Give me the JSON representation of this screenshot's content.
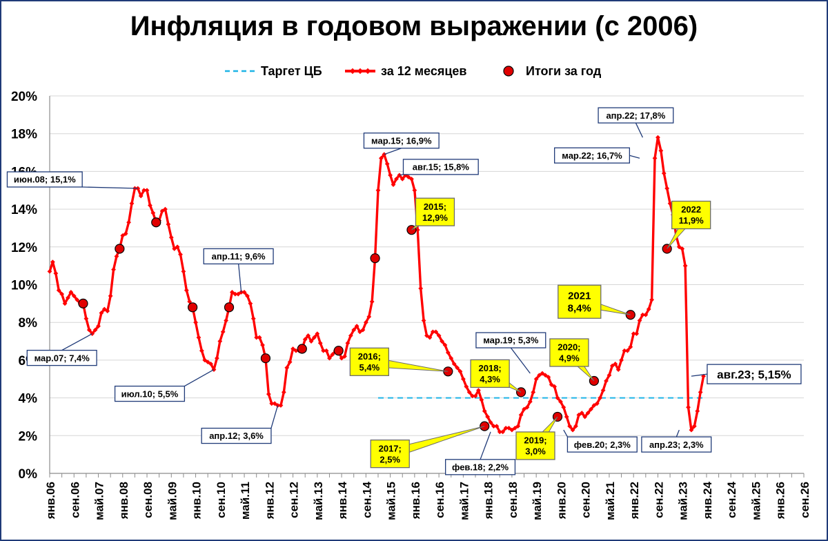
{
  "chart_data": {
    "type": "line",
    "title": "Инфляция в годовом выражении (с 2006)",
    "legend": {
      "position": "top-center",
      "items": [
        {
          "name": "Таргет ЦБ",
          "style": "dashed",
          "color": "#1eb4e6"
        },
        {
          "name": "за 12 месяцев",
          "style": "line-markers",
          "color": "#ff0000"
        },
        {
          "name": "Итоги за год",
          "style": "circle",
          "color": "#e00000"
        }
      ]
    },
    "x_axis": {
      "start_month": "янв.06",
      "end_month": "сен.26",
      "tick_labels": [
        "янв.06",
        "сен.06",
        "май.07",
        "янв.08",
        "сен.08",
        "май.09",
        "янв.10",
        "сен.10",
        "май.11",
        "янв.12",
        "сен.12",
        "май.13",
        "янв.14",
        "сен.14",
        "май.15",
        "янв.16",
        "сен.16",
        "май.17",
        "янв.18",
        "сен.18",
        "май.19",
        "янв.20",
        "сен.20",
        "май.21",
        "янв.22",
        "сен.22",
        "май.23",
        "янв.24",
        "сен.24",
        "май.25",
        "янв.26",
        "сен.26"
      ]
    },
    "y_axis": {
      "min": 0,
      "max": 20,
      "step": 2,
      "tick_labels": [
        "0%",
        "2%",
        "4%",
        "6%",
        "8%",
        "10%",
        "12%",
        "14%",
        "16%",
        "18%",
        "20%"
      ]
    },
    "grid": {
      "horizontal": true,
      "vertical": false
    },
    "series": [
      {
        "name": "за 12 месяцев",
        "color": "#ff0000",
        "start": "янв.06",
        "values": [
          10.7,
          11.2,
          10.6,
          9.7,
          9.5,
          9.0,
          9.3,
          9.6,
          9.4,
          9.2,
          9.0,
          9.0,
          8.2,
          7.6,
          7.4,
          7.6,
          7.8,
          8.5,
          8.7,
          8.6,
          9.4,
          10.8,
          11.5,
          11.9,
          12.6,
          12.7,
          13.3,
          14.3,
          15.1,
          15.1,
          14.7,
          15.0,
          15.0,
          14.2,
          13.8,
          13.3,
          13.4,
          13.9,
          14.0,
          13.2,
          12.5,
          11.9,
          12.0,
          11.6,
          10.7,
          9.7,
          9.1,
          8.8,
          8.0,
          7.2,
          6.5,
          6.0,
          5.9,
          5.8,
          5.5,
          6.1,
          7.0,
          7.5,
          8.1,
          8.8,
          9.6,
          9.5,
          9.5,
          9.6,
          9.6,
          9.4,
          9.0,
          8.2,
          7.2,
          7.2,
          6.8,
          6.1,
          4.2,
          3.7,
          3.7,
          3.6,
          3.6,
          4.3,
          5.6,
          5.9,
          6.6,
          6.5,
          6.5,
          6.6,
          7.1,
          7.3,
          7.0,
          7.2,
          7.4,
          6.9,
          6.5,
          6.5,
          6.1,
          6.3,
          6.5,
          6.5,
          6.1,
          6.2,
          6.9,
          7.3,
          7.6,
          7.8,
          7.5,
          7.6,
          8.0,
          8.3,
          9.1,
          11.4,
          15.0,
          16.7,
          16.9,
          16.4,
          15.8,
          15.3,
          15.6,
          15.8,
          15.6,
          15.8,
          15.7,
          15.6,
          15.0,
          12.9,
          9.8,
          8.1,
          7.3,
          7.2,
          7.5,
          7.5,
          7.3,
          7.0,
          6.8,
          6.4,
          6.1,
          5.8,
          5.6,
          5.4,
          5.0,
          4.6,
          4.3,
          4.1,
          4.1,
          4.4,
          3.9,
          3.3,
          3.0,
          2.7,
          2.5,
          2.5,
          2.2,
          2.2,
          2.4,
          2.4,
          2.3,
          2.4,
          2.5,
          3.1,
          3.4,
          3.5,
          3.8,
          4.3,
          5.0,
          5.2,
          5.3,
          5.2,
          5.1,
          4.7,
          4.6,
          4.0,
          3.8,
          3.5,
          3.0,
          2.5,
          2.3,
          2.5,
          3.1,
          3.2,
          3.0,
          3.2,
          3.4,
          3.6,
          3.7,
          4.0,
          4.4,
          4.9,
          5.2,
          5.7,
          5.8,
          5.5,
          6.0,
          6.5,
          6.5,
          6.7,
          7.4,
          7.4,
          8.1,
          8.4,
          8.4,
          8.7,
          9.2,
          16.7,
          17.8,
          17.1,
          15.9,
          15.1,
          14.3,
          13.7,
          12.6,
          12.0,
          11.9,
          11.0,
          3.5,
          2.3,
          2.5,
          3.3,
          4.3,
          5.15
        ]
      },
      {
        "name": "Таргет ЦБ",
        "color": "#1eb4e6",
        "from": "янв.15",
        "to": "дек.23",
        "value": 4.0
      },
      {
        "name": "Итоги за год",
        "color": "#e00000",
        "points": [
          {
            "x": "дек.06",
            "y": 9.0
          },
          {
            "x": "дек.07",
            "y": 11.9
          },
          {
            "x": "дек.08",
            "y": 13.3
          },
          {
            "x": "дек.09",
            "y": 8.8
          },
          {
            "x": "дек.10",
            "y": 8.8
          },
          {
            "x": "дек.11",
            "y": 6.1
          },
          {
            "x": "дек.12",
            "y": 6.6
          },
          {
            "x": "дек.13",
            "y": 6.5
          },
          {
            "x": "дек.14",
            "y": 11.4
          },
          {
            "x": "дек.15",
            "y": 12.9
          },
          {
            "x": "дек.16",
            "y": 5.4
          },
          {
            "x": "дек.17",
            "y": 2.5
          },
          {
            "x": "дек.18",
            "y": 4.3
          },
          {
            "x": "дек.19",
            "y": 3.0
          },
          {
            "x": "дек.20",
            "y": 4.9
          },
          {
            "x": "дек.21",
            "y": 8.4
          },
          {
            "x": "дек.22",
            "y": 11.9
          }
        ]
      }
    ],
    "annotations": [
      {
        "text": "июн.08; 15,1%",
        "x": "июн.08",
        "y": 15.1,
        "style": "white"
      },
      {
        "text": "мар.07; 7,4%",
        "x": "мар.07",
        "y": 7.4,
        "style": "white"
      },
      {
        "text": "июл.10; 5,5%",
        "x": "июл.10",
        "y": 5.5,
        "style": "white"
      },
      {
        "text": "апр.11; 9,6%",
        "x": "апр.11",
        "y": 9.6,
        "style": "white"
      },
      {
        "text": "апр.12; 3,6%",
        "x": "апр.12",
        "y": 3.6,
        "style": "white"
      },
      {
        "text": "мар.15; 16,9%",
        "x": "мар.15",
        "y": 16.9,
        "style": "white"
      },
      {
        "text": "авг.15; 15,8%",
        "x": "авг.15",
        "y": 15.8,
        "style": "white"
      },
      {
        "text": "фев.18; 2,2%",
        "x": "фев.18",
        "y": 2.2,
        "style": "white"
      },
      {
        "text": "мар.19; 5,3%",
        "x": "мар.19",
        "y": 5.3,
        "style": "white"
      },
      {
        "text": "фев.20; 2,3%",
        "x": "фев.20",
        "y": 2.3,
        "style": "white"
      },
      {
        "text": "апр.22; 17,8%",
        "x": "апр.22",
        "y": 17.8,
        "style": "white"
      },
      {
        "text": "мар.22; 16,7%",
        "x": "мар.22",
        "y": 16.7,
        "style": "white"
      },
      {
        "text": "апр.23; 2,3%",
        "x": "апр.23",
        "y": 2.3,
        "style": "white"
      },
      {
        "text": "авг.23; 5,15%",
        "x": "авг.23",
        "y": 5.15,
        "style": "white-large"
      },
      {
        "text": "2015;\n12,9%",
        "x": "дек.15",
        "y": 12.9,
        "style": "yellow"
      },
      {
        "text": "2016;\n5,4%",
        "x": "дек.16",
        "y": 5.4,
        "style": "yellow"
      },
      {
        "text": "2017;\n2,5%",
        "x": "дек.17",
        "y": 2.5,
        "style": "yellow"
      },
      {
        "text": "2018;\n4,3%",
        "x": "дек.18",
        "y": 4.3,
        "style": "yellow"
      },
      {
        "text": "2019;\n3,0%",
        "x": "дек.19",
        "y": 3.0,
        "style": "yellow"
      },
      {
        "text": "2020;\n4,9%",
        "x": "дек.20",
        "y": 4.9,
        "style": "yellow"
      },
      {
        "text": "2021\n8,4%",
        "x": "дек.21",
        "y": 8.4,
        "style": "yellow-large"
      },
      {
        "text": "2022\n11,9%",
        "x": "дек.22",
        "y": 11.9,
        "style": "yellow"
      }
    ]
  }
}
